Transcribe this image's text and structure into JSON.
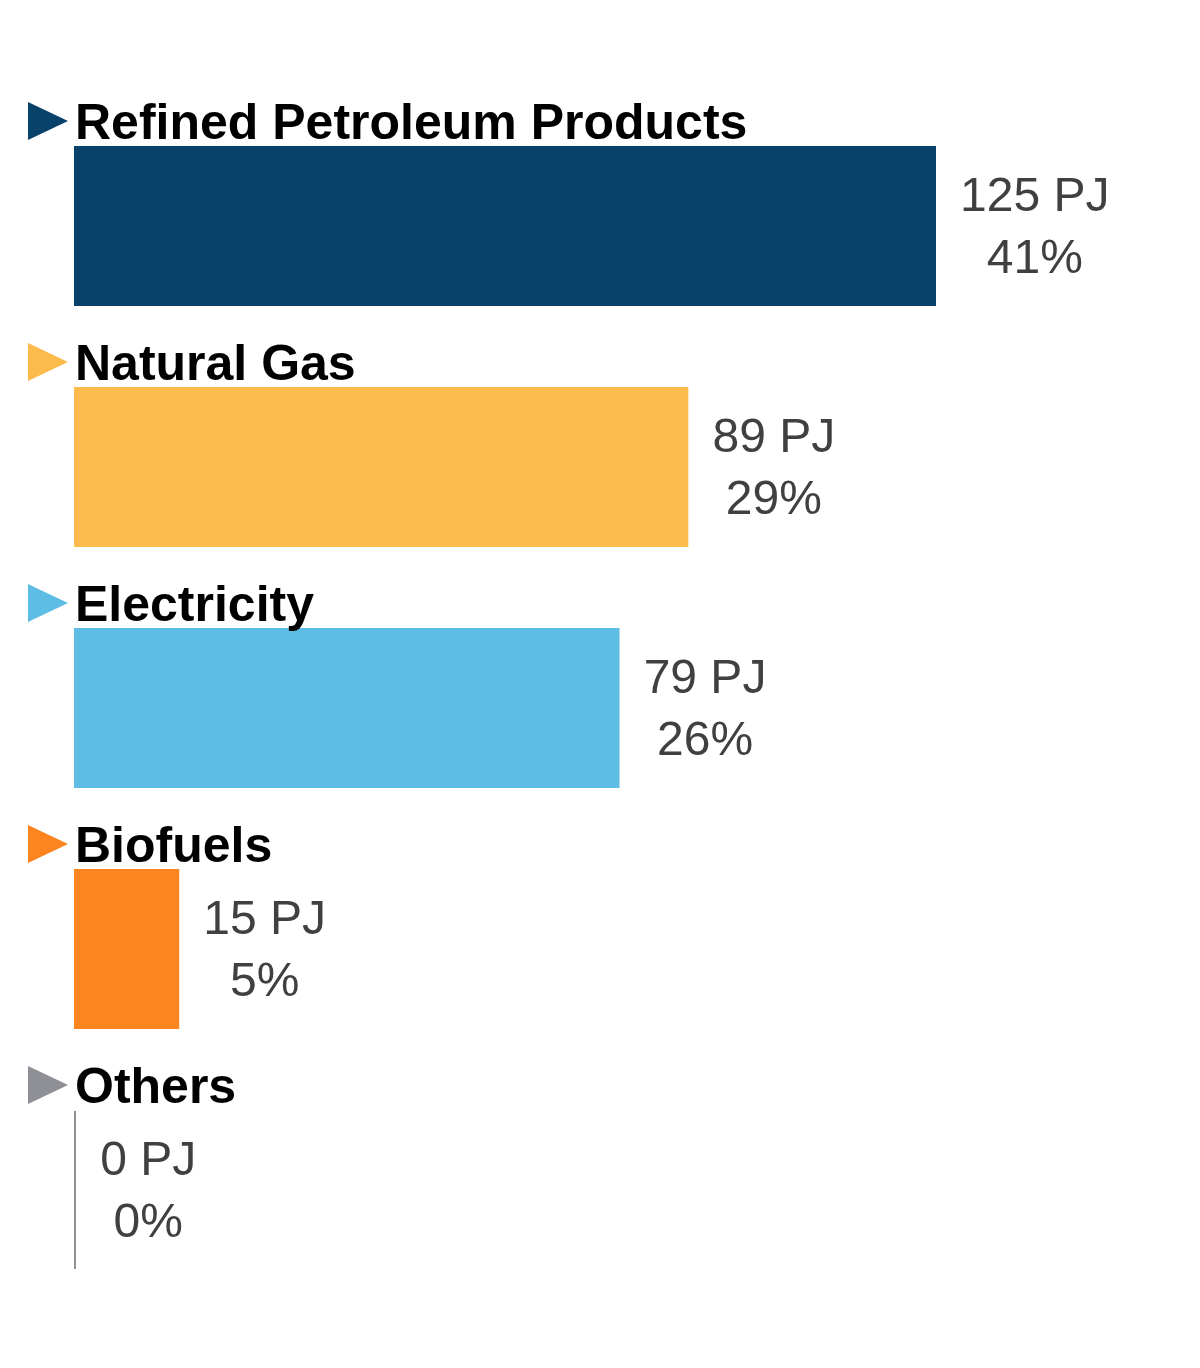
{
  "chart_data": {
    "type": "bar",
    "orientation": "horizontal",
    "categories": [
      "Refined Petroleum Products",
      "Natural Gas",
      "Electricity",
      "Biofuels",
      "Others"
    ],
    "values": [
      125,
      89,
      79,
      15,
      0
    ],
    "colors": [
      "#08416a",
      "#fdbb4e",
      "#5ebde5",
      "#fd8520",
      "#8e9095"
    ],
    "value_labels": [
      "125 PJ\n41%",
      "89 PJ\n29%",
      "79 PJ\n26%",
      "15 PJ\n5%",
      "0 PJ\n0%"
    ]
  }
}
